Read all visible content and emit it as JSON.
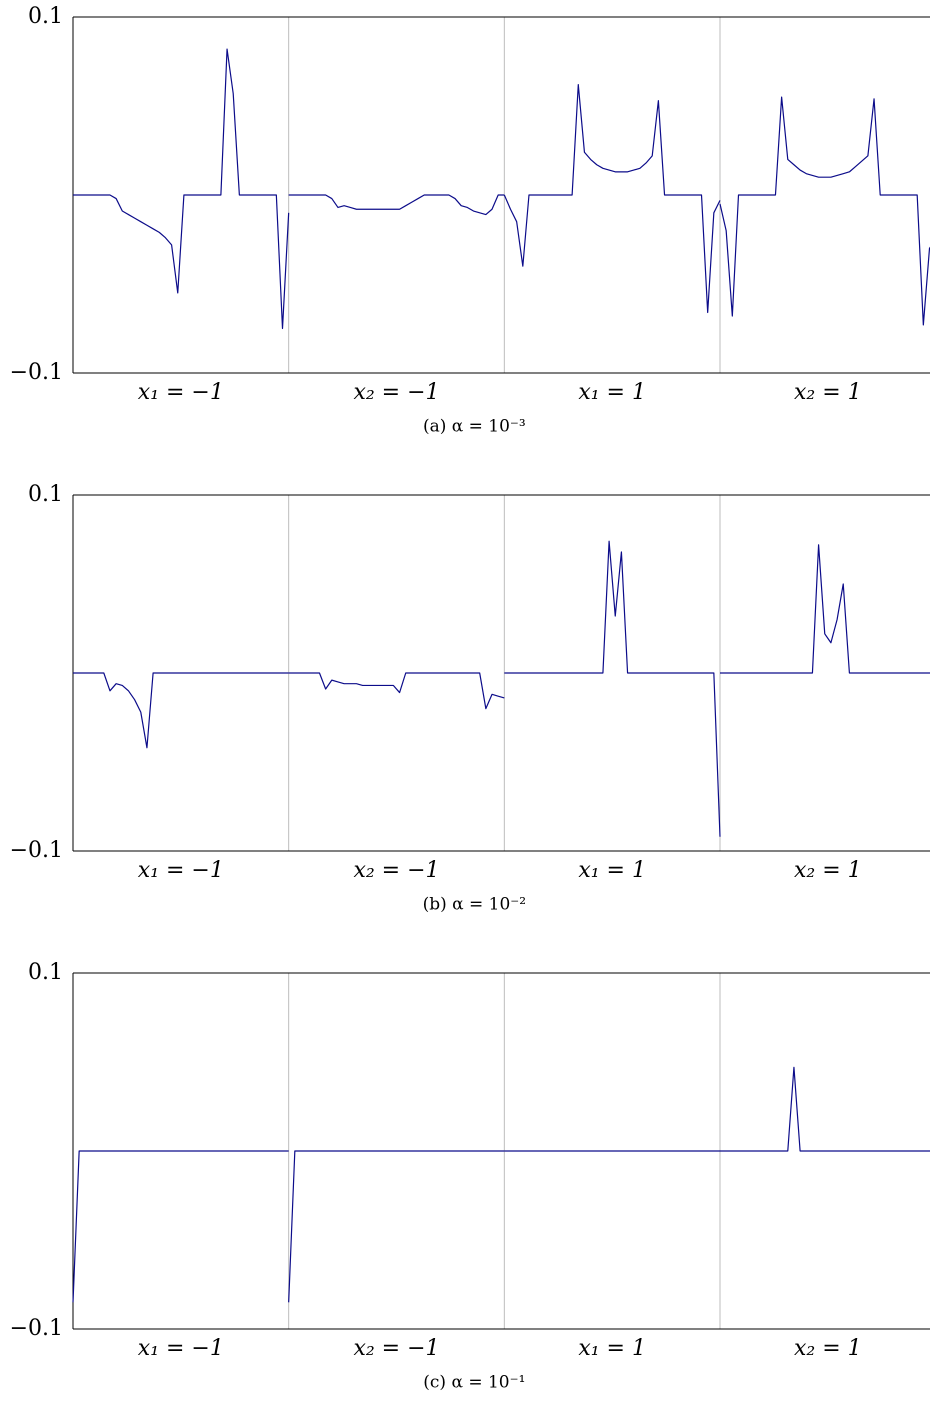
{
  "chart_data": [
    {
      "type": "line",
      "caption": "(a) α = 10⁻³",
      "categories": [
        "x₁ = −1",
        "x₂ = −1",
        "x₁ = 1",
        "x₂ = 1"
      ],
      "ylim": [
        -0.1,
        0.1
      ],
      "yticks": [
        {
          "value": -0.1,
          "label": "−0.1"
        },
        0.1
      ],
      "series": [
        {
          "color": "#0c0c8a",
          "values": [
            [
              0,
              0,
              0,
              0,
              0,
              0,
              0,
              -0.002,
              -0.009,
              -0.011,
              -0.013,
              -0.015,
              -0.017,
              -0.019,
              -0.021,
              -0.024,
              -0.028,
              -0.055,
              0,
              0,
              0,
              0,
              0,
              0,
              0,
              0.082,
              0.057,
              0,
              0,
              0,
              0,
              0,
              0,
              0,
              -0.075,
              -0.01
            ],
            [
              0,
              0,
              0,
              0,
              0,
              0,
              0,
              -0.002,
              -0.007,
              -0.006,
              -0.007,
              -0.008,
              -0.008,
              -0.008,
              -0.008,
              -0.008,
              -0.008,
              -0.008,
              -0.008,
              -0.006,
              -0.004,
              -0.002,
              0,
              0,
              0,
              0,
              0,
              -0.002,
              -0.006,
              -0.007,
              -0.009,
              -0.01,
              -0.011,
              -0.008,
              0,
              0
            ],
            [
              0,
              -0.008,
              -0.015,
              -0.04,
              0,
              0,
              0,
              0,
              0,
              0,
              0,
              0,
              0.062,
              0.024,
              0.02,
              0.017,
              0.015,
              0.014,
              0.013,
              0.013,
              0.013,
              0.014,
              0.015,
              0.018,
              0.022,
              0.053,
              0,
              0,
              0,
              0,
              0,
              0,
              0,
              -0.066,
              -0.01,
              -0.003
            ],
            [
              -0.005,
              -0.02,
              -0.068,
              0,
              0,
              0,
              0,
              0,
              0,
              0,
              0.055,
              0.02,
              0.017,
              0.014,
              0.012,
              0.011,
              0.01,
              0.01,
              0.01,
              0.011,
              0.012,
              0.013,
              0.016,
              0.019,
              0.022,
              0.054,
              0,
              0,
              0,
              0,
              0,
              0,
              0,
              -0.073,
              -0.03,
              -0.025
            ]
          ]
        }
      ]
    },
    {
      "type": "line",
      "caption": "(b) α = 10⁻²",
      "categories": [
        "x₁ = −1",
        "x₂ = −1",
        "x₁ = 1",
        "x₂ = 1"
      ],
      "ylim": [
        -0.1,
        0.1
      ],
      "yticks": [
        {
          "value": -0.1,
          "label": "−0.1"
        },
        0.1
      ],
      "series": [
        {
          "color": "#0c0c8a",
          "values": [
            [
              0,
              0,
              0,
              0,
              0,
              0,
              -0.01,
              -0.006,
              -0.007,
              -0.01,
              -0.015,
              -0.022,
              -0.042,
              0,
              0,
              0,
              0,
              0,
              0,
              0,
              0,
              0,
              0,
              0,
              0,
              0,
              0,
              0,
              0,
              0,
              0,
              0,
              0,
              0,
              0,
              0
            ],
            [
              0,
              0,
              0,
              0,
              0,
              0,
              -0.009,
              -0.004,
              -0.005,
              -0.006,
              -0.006,
              -0.006,
              -0.007,
              -0.007,
              -0.007,
              -0.007,
              -0.007,
              -0.007,
              -0.011,
              0,
              0,
              0,
              0,
              0,
              0,
              0,
              0,
              0,
              0,
              0,
              0,
              0,
              -0.02,
              -0.012,
              -0.013,
              -0.014
            ],
            [
              0,
              0,
              0,
              0,
              0,
              0,
              0,
              0,
              0,
              0,
              0,
              0,
              0,
              0,
              0,
              0,
              0,
              0.074,
              0.032,
              0.068,
              0,
              0,
              0,
              0,
              0,
              0,
              0,
              0,
              0,
              0,
              0,
              0,
              0,
              0,
              0,
              -0.092
            ],
            [
              0,
              0,
              0,
              0,
              0,
              0,
              0,
              0,
              0,
              0,
              0,
              0,
              0,
              0,
              0,
              0,
              0.072,
              0.022,
              0.017,
              0.03,
              0.05,
              0,
              0,
              0,
              0,
              0,
              0,
              0,
              0,
              0,
              0,
              0,
              0,
              0,
              0,
              0
            ]
          ]
        }
      ]
    },
    {
      "type": "line",
      "caption": "(c) α = 10⁻¹",
      "categories": [
        "x₁ = −1",
        "x₂ = −1",
        "x₁ = 1",
        "x₂ = 1"
      ],
      "ylim": [
        -0.1,
        0.1
      ],
      "yticks": [
        {
          "value": -0.1,
          "label": "−0.1"
        },
        0.1
      ],
      "series": [
        {
          "color": "#0c0c8a",
          "values": [
            [
              -0.085,
              0,
              0,
              0,
              0,
              0,
              0,
              0,
              0,
              0,
              0,
              0,
              0,
              0,
              0,
              0,
              0,
              0,
              0,
              0,
              0,
              0,
              0,
              0,
              0,
              0,
              0,
              0,
              0,
              0,
              0,
              0,
              0,
              0,
              0,
              0
            ],
            [
              -0.085,
              0,
              0,
              0,
              0,
              0,
              0,
              0,
              0,
              0,
              0,
              0,
              0,
              0,
              0,
              0,
              0,
              0,
              0,
              0,
              0,
              0,
              0,
              0,
              0,
              0,
              0,
              0,
              0,
              0,
              0,
              0,
              0,
              0,
              0,
              0
            ],
            [
              0,
              0,
              0,
              0,
              0,
              0,
              0,
              0,
              0,
              0,
              0,
              0,
              0,
              0,
              0,
              0,
              0,
              0,
              0,
              0,
              0,
              0,
              0,
              0,
              0,
              0,
              0,
              0,
              0,
              0,
              0,
              0,
              0,
              0,
              0,
              0
            ],
            [
              0,
              0,
              0,
              0,
              0,
              0,
              0,
              0,
              0,
              0,
              0,
              0,
              0.047,
              0,
              0,
              0,
              0,
              0,
              0,
              0,
              0,
              0,
              0,
              0,
              0,
              0,
              0,
              0,
              0,
              0,
              0,
              0,
              0,
              0,
              0,
              0
            ]
          ]
        }
      ]
    }
  ]
}
